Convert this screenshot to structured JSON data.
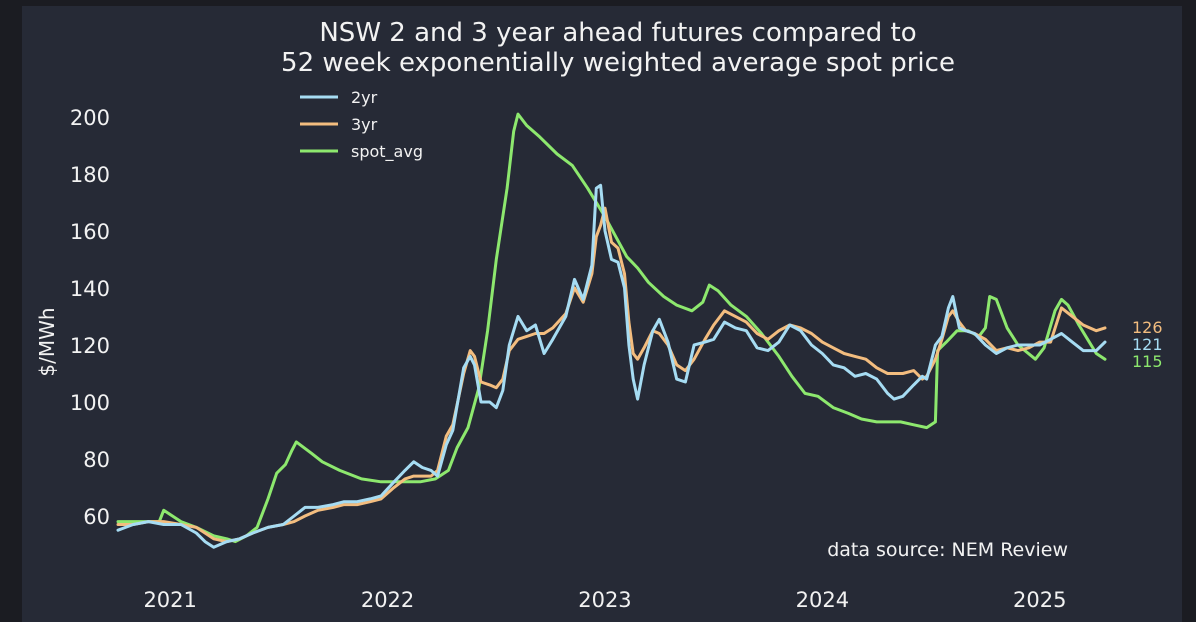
{
  "chart_data": {
    "type": "line",
    "title": [
      "NSW 2 and 3 year ahead futures compared to",
      "52 week exponentially weighted average spot price"
    ],
    "ylabel": "$/MWh",
    "xlabel": "",
    "ylim": [
      47,
      207
    ],
    "xlim": [
      2020.76,
      2025.36
    ],
    "y_ticks": [
      60,
      80,
      100,
      120,
      140,
      160,
      180,
      200
    ],
    "x_ticks": [
      {
        "label": "2021",
        "value": 2021.0
      },
      {
        "label": "2022",
        "value": 2022.0
      },
      {
        "label": "2023",
        "value": 2023.0
      },
      {
        "label": "2024",
        "value": 2024.0
      },
      {
        "label": "2025",
        "value": 2025.0
      }
    ],
    "grid": false,
    "legend_position": "top-left",
    "annotation": "data source: NEM Review",
    "series": [
      {
        "name": "2yr",
        "color": "#a6dcf3",
        "end_label": "121",
        "points": [
          [
            2020.76,
            55
          ],
          [
            2020.83,
            57
          ],
          [
            2020.9,
            58
          ],
          [
            2020.97,
            57
          ],
          [
            2021.05,
            57
          ],
          [
            2021.12,
            54
          ],
          [
            2021.16,
            51
          ],
          [
            2021.2,
            49
          ],
          [
            2021.26,
            51
          ],
          [
            2021.32,
            52
          ],
          [
            2021.38,
            54
          ],
          [
            2021.45,
            56
          ],
          [
            2021.52,
            57
          ],
          [
            2021.57,
            60
          ],
          [
            2021.62,
            63
          ],
          [
            2021.68,
            63
          ],
          [
            2021.75,
            64
          ],
          [
            2021.8,
            65
          ],
          [
            2021.86,
            65
          ],
          [
            2021.92,
            66
          ],
          [
            2021.97,
            67
          ],
          [
            2022.03,
            72
          ],
          [
            2022.08,
            76
          ],
          [
            2022.12,
            79
          ],
          [
            2022.16,
            77
          ],
          [
            2022.2,
            76
          ],
          [
            2022.23,
            74
          ],
          [
            2022.27,
            85
          ],
          [
            2022.3,
            90
          ],
          [
            2022.35,
            112
          ],
          [
            2022.38,
            116
          ],
          [
            2022.4,
            113
          ],
          [
            2022.43,
            100
          ],
          [
            2022.47,
            100
          ],
          [
            2022.5,
            98
          ],
          [
            2022.53,
            104
          ],
          [
            2022.56,
            120
          ],
          [
            2022.6,
            130
          ],
          [
            2022.64,
            125
          ],
          [
            2022.68,
            127
          ],
          [
            2022.72,
            117
          ],
          [
            2022.76,
            122
          ],
          [
            2022.82,
            130
          ],
          [
            2022.86,
            143
          ],
          [
            2022.9,
            136
          ],
          [
            2022.94,
            148
          ],
          [
            2022.96,
            175
          ],
          [
            2022.98,
            176
          ],
          [
            2023.0,
            160
          ],
          [
            2023.03,
            150
          ],
          [
            2023.06,
            149
          ],
          [
            2023.09,
            140
          ],
          [
            2023.11,
            120
          ],
          [
            2023.13,
            108
          ],
          [
            2023.15,
            101
          ],
          [
            2023.18,
            113
          ],
          [
            2023.22,
            125
          ],
          [
            2023.25,
            129
          ],
          [
            2023.29,
            121
          ],
          [
            2023.33,
            108
          ],
          [
            2023.37,
            107
          ],
          [
            2023.41,
            120
          ],
          [
            2023.46,
            121
          ],
          [
            2023.5,
            122
          ],
          [
            2023.55,
            128
          ],
          [
            2023.6,
            126
          ],
          [
            2023.65,
            125
          ],
          [
            2023.7,
            119
          ],
          [
            2023.75,
            118
          ],
          [
            2023.8,
            121
          ],
          [
            2023.85,
            127
          ],
          [
            2023.9,
            125
          ],
          [
            2023.95,
            120
          ],
          [
            2024.0,
            117
          ],
          [
            2024.05,
            113
          ],
          [
            2024.1,
            112
          ],
          [
            2024.15,
            109
          ],
          [
            2024.2,
            110
          ],
          [
            2024.25,
            108
          ],
          [
            2024.3,
            103
          ],
          [
            2024.33,
            101
          ],
          [
            2024.37,
            102
          ],
          [
            2024.42,
            106
          ],
          [
            2024.46,
            109
          ],
          [
            2024.48,
            108
          ],
          [
            2024.52,
            120
          ],
          [
            2024.55,
            123
          ],
          [
            2024.58,
            133
          ],
          [
            2024.6,
            137
          ],
          [
            2024.63,
            126
          ],
          [
            2024.66,
            125
          ],
          [
            2024.7,
            124
          ],
          [
            2024.75,
            120
          ],
          [
            2024.8,
            117
          ],
          [
            2024.85,
            119
          ],
          [
            2024.9,
            120
          ],
          [
            2024.95,
            120
          ],
          [
            2025.0,
            120
          ],
          [
            2025.05,
            122
          ],
          [
            2025.1,
            124
          ],
          [
            2025.15,
            121
          ],
          [
            2025.2,
            118
          ],
          [
            2025.26,
            118
          ],
          [
            2025.3,
            121
          ]
        ]
      },
      {
        "name": "3yr",
        "color": "#f3bd7f",
        "end_label": "126",
        "points": [
          [
            2020.76,
            57
          ],
          [
            2020.83,
            57
          ],
          [
            2020.9,
            58
          ],
          [
            2020.97,
            58
          ],
          [
            2021.05,
            57
          ],
          [
            2021.12,
            56
          ],
          [
            2021.16,
            54
          ],
          [
            2021.2,
            52
          ],
          [
            2021.26,
            51
          ],
          [
            2021.32,
            52
          ],
          [
            2021.38,
            54
          ],
          [
            2021.45,
            56
          ],
          [
            2021.52,
            57
          ],
          [
            2021.57,
            58
          ],
          [
            2021.62,
            60
          ],
          [
            2021.68,
            62
          ],
          [
            2021.75,
            63
          ],
          [
            2021.8,
            64
          ],
          [
            2021.86,
            64
          ],
          [
            2021.92,
            65
          ],
          [
            2021.97,
            66
          ],
          [
            2022.03,
            70
          ],
          [
            2022.08,
            73
          ],
          [
            2022.12,
            74
          ],
          [
            2022.16,
            74
          ],
          [
            2022.2,
            74
          ],
          [
            2022.23,
            76
          ],
          [
            2022.27,
            88
          ],
          [
            2022.3,
            92
          ],
          [
            2022.35,
            110
          ],
          [
            2022.38,
            118
          ],
          [
            2022.4,
            116
          ],
          [
            2022.43,
            107
          ],
          [
            2022.47,
            106
          ],
          [
            2022.5,
            105
          ],
          [
            2022.53,
            108
          ],
          [
            2022.56,
            118
          ],
          [
            2022.6,
            122
          ],
          [
            2022.64,
            123
          ],
          [
            2022.68,
            124
          ],
          [
            2022.72,
            124
          ],
          [
            2022.76,
            126
          ],
          [
            2022.82,
            131
          ],
          [
            2022.86,
            140
          ],
          [
            2022.9,
            135
          ],
          [
            2022.94,
            145
          ],
          [
            2022.96,
            158
          ],
          [
            2022.98,
            162
          ],
          [
            2023.0,
            168
          ],
          [
            2023.03,
            156
          ],
          [
            2023.06,
            154
          ],
          [
            2023.09,
            145
          ],
          [
            2023.11,
            128
          ],
          [
            2023.13,
            117
          ],
          [
            2023.15,
            115
          ],
          [
            2023.18,
            119
          ],
          [
            2023.22,
            125
          ],
          [
            2023.25,
            124
          ],
          [
            2023.29,
            120
          ],
          [
            2023.33,
            113
          ],
          [
            2023.37,
            111
          ],
          [
            2023.41,
            115
          ],
          [
            2023.46,
            122
          ],
          [
            2023.5,
            127
          ],
          [
            2023.55,
            132
          ],
          [
            2023.6,
            130
          ],
          [
            2023.65,
            128
          ],
          [
            2023.7,
            124
          ],
          [
            2023.75,
            122
          ],
          [
            2023.8,
            125
          ],
          [
            2023.85,
            127
          ],
          [
            2023.9,
            126
          ],
          [
            2023.95,
            124
          ],
          [
            2024.0,
            121
          ],
          [
            2024.05,
            119
          ],
          [
            2024.1,
            117
          ],
          [
            2024.15,
            116
          ],
          [
            2024.2,
            115
          ],
          [
            2024.25,
            112
          ],
          [
            2024.3,
            110
          ],
          [
            2024.33,
            110
          ],
          [
            2024.37,
            110
          ],
          [
            2024.42,
            111
          ],
          [
            2024.46,
            108
          ],
          [
            2024.48,
            109
          ],
          [
            2024.52,
            115
          ],
          [
            2024.55,
            122
          ],
          [
            2024.58,
            130
          ],
          [
            2024.6,
            132
          ],
          [
            2024.63,
            128
          ],
          [
            2024.66,
            125
          ],
          [
            2024.7,
            124
          ],
          [
            2024.75,
            122
          ],
          [
            2024.8,
            118
          ],
          [
            2024.85,
            119
          ],
          [
            2024.9,
            118
          ],
          [
            2024.95,
            119
          ],
          [
            2025.0,
            121
          ],
          [
            2025.05,
            121
          ],
          [
            2025.1,
            133
          ],
          [
            2025.15,
            130
          ],
          [
            2025.2,
            127
          ],
          [
            2025.26,
            125
          ],
          [
            2025.3,
            126
          ]
        ]
      },
      {
        "name": "spot_avg",
        "color": "#8de86e",
        "end_label": "115",
        "points": [
          [
            2020.76,
            58
          ],
          [
            2020.83,
            58
          ],
          [
            2020.88,
            58
          ],
          [
            2020.95,
            58
          ],
          [
            2020.97,
            62
          ],
          [
            2021.05,
            58
          ],
          [
            2021.12,
            56
          ],
          [
            2021.2,
            53
          ],
          [
            2021.26,
            52
          ],
          [
            2021.3,
            51
          ],
          [
            2021.35,
            53
          ],
          [
            2021.4,
            56
          ],
          [
            2021.45,
            66
          ],
          [
            2021.49,
            75
          ],
          [
            2021.53,
            78
          ],
          [
            2021.56,
            83
          ],
          [
            2021.58,
            86
          ],
          [
            2021.65,
            82
          ],
          [
            2021.7,
            79
          ],
          [
            2021.78,
            76
          ],
          [
            2021.88,
            73
          ],
          [
            2021.97,
            72
          ],
          [
            2022.05,
            72
          ],
          [
            2022.15,
            72
          ],
          [
            2022.22,
            73
          ],
          [
            2022.28,
            76
          ],
          [
            2022.32,
            84
          ],
          [
            2022.37,
            91
          ],
          [
            2022.42,
            105
          ],
          [
            2022.46,
            125
          ],
          [
            2022.5,
            150
          ],
          [
            2022.55,
            175
          ],
          [
            2022.58,
            195
          ],
          [
            2022.6,
            201
          ],
          [
            2022.64,
            197
          ],
          [
            2022.7,
            193
          ],
          [
            2022.78,
            187
          ],
          [
            2022.85,
            183
          ],
          [
            2022.92,
            175
          ],
          [
            2023.0,
            165
          ],
          [
            2023.05,
            158
          ],
          [
            2023.1,
            151
          ],
          [
            2023.15,
            147
          ],
          [
            2023.2,
            142
          ],
          [
            2023.27,
            137
          ],
          [
            2023.33,
            134
          ],
          [
            2023.4,
            132
          ],
          [
            2023.45,
            135
          ],
          [
            2023.48,
            141
          ],
          [
            2023.52,
            139
          ],
          [
            2023.58,
            134
          ],
          [
            2023.65,
            130
          ],
          [
            2023.72,
            124
          ],
          [
            2023.8,
            116
          ],
          [
            2023.86,
            109
          ],
          [
            2023.92,
            103
          ],
          [
            2023.98,
            102
          ],
          [
            2024.05,
            98
          ],
          [
            2024.12,
            96
          ],
          [
            2024.18,
            94
          ],
          [
            2024.25,
            93
          ],
          [
            2024.3,
            93
          ],
          [
            2024.36,
            93
          ],
          [
            2024.42,
            92
          ],
          [
            2024.48,
            91
          ],
          [
            2024.52,
            93
          ],
          [
            2024.53,
            118
          ],
          [
            2024.57,
            121
          ],
          [
            2024.62,
            125
          ],
          [
            2024.67,
            125
          ],
          [
            2024.72,
            123
          ],
          [
            2024.75,
            126
          ],
          [
            2024.77,
            137
          ],
          [
            2024.8,
            136
          ],
          [
            2024.85,
            126
          ],
          [
            2024.9,
            120
          ],
          [
            2024.98,
            115
          ],
          [
            2025.02,
            119
          ],
          [
            2025.07,
            132
          ],
          [
            2025.1,
            136
          ],
          [
            2025.13,
            134
          ],
          [
            2025.18,
            127
          ],
          [
            2025.22,
            122
          ],
          [
            2025.26,
            117
          ],
          [
            2025.3,
            115
          ]
        ]
      }
    ]
  }
}
